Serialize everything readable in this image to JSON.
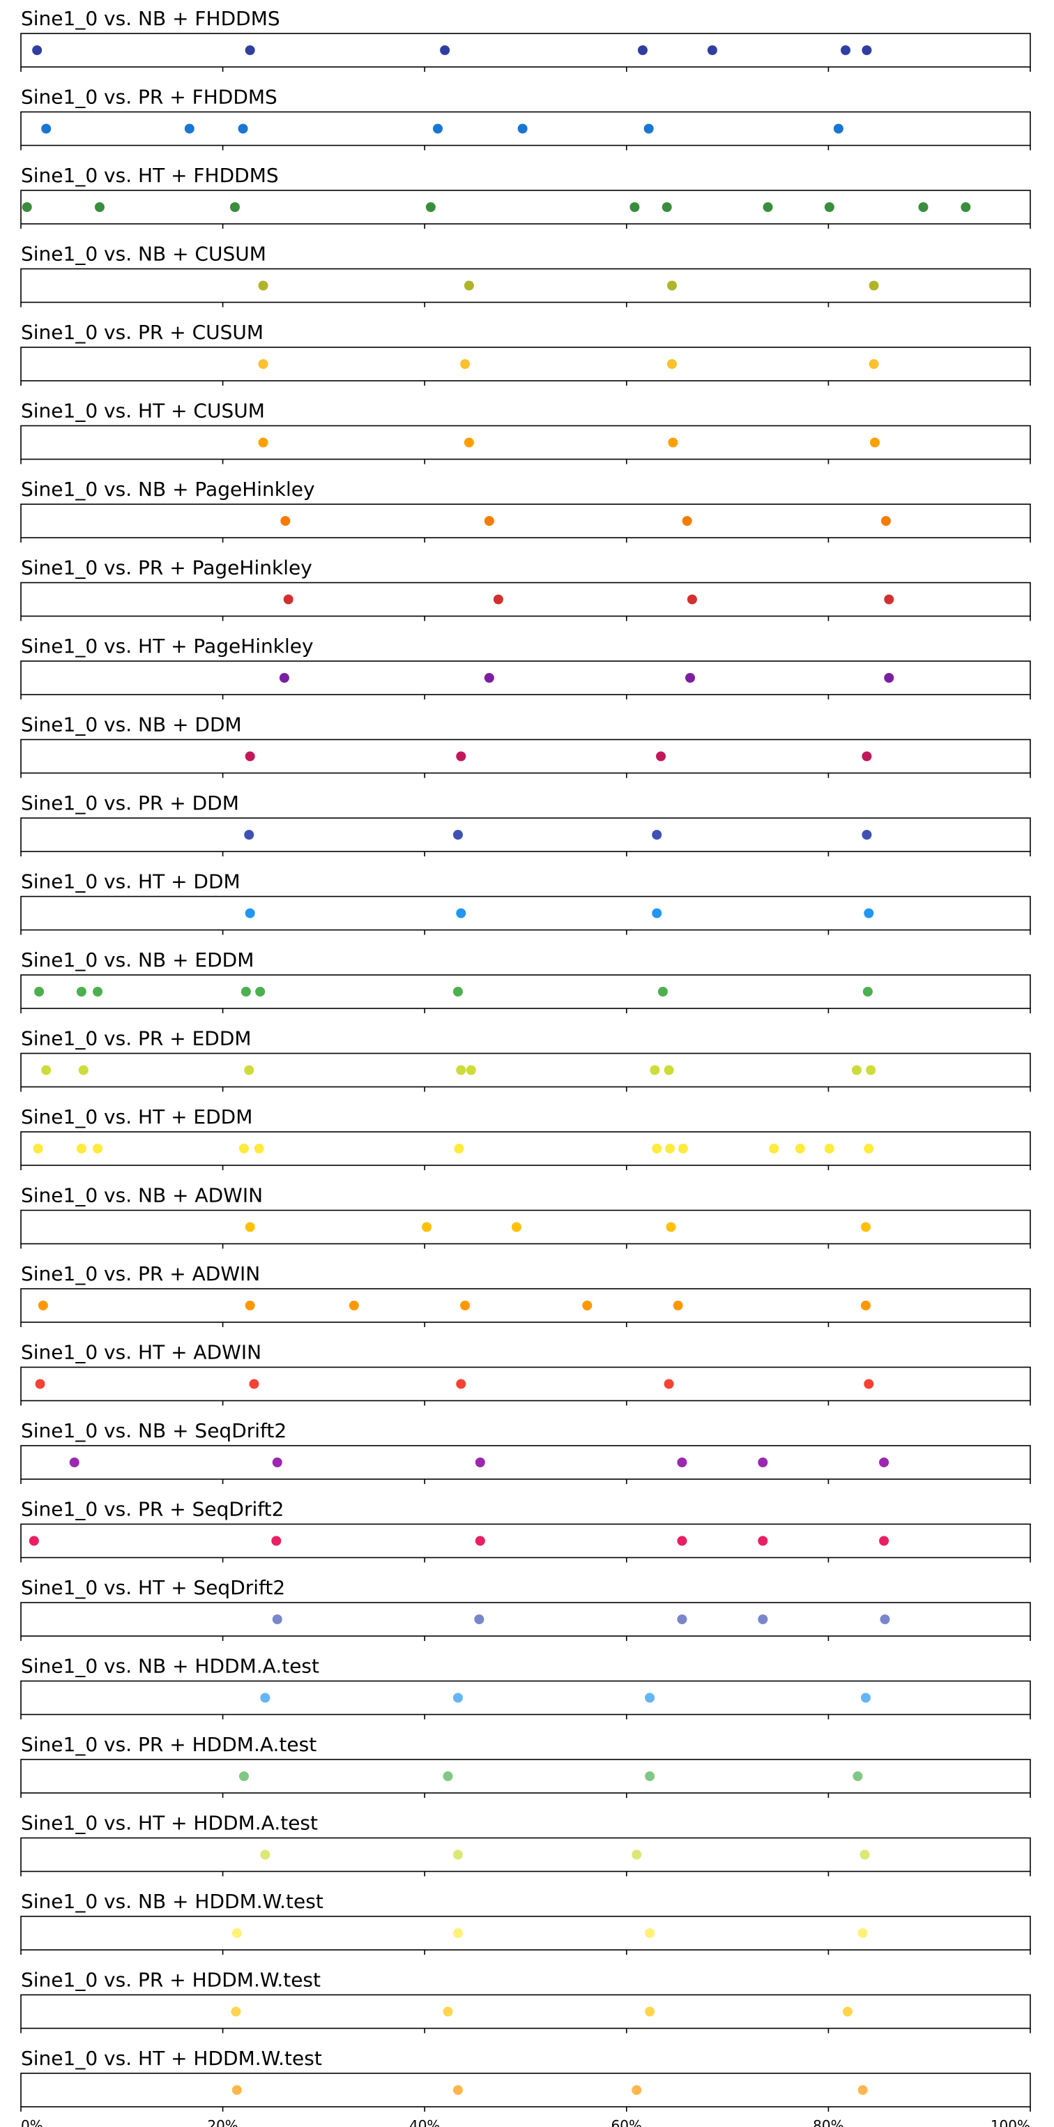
{
  "chart_data": {
    "type": "scatter",
    "xlim": [
      0,
      100
    ],
    "x_ticks": [
      "0%",
      "20%",
      "40%",
      "60%",
      "80%",
      "100%"
    ],
    "panels": [
      {
        "title": "Sine1_0 vs. NB + FHDDMS",
        "color": "#303f9f",
        "x": [
          1.6,
          22.7,
          42.0,
          61.6,
          68.5,
          81.7,
          83.8
        ]
      },
      {
        "title": "Sine1_0 vs. PR + FHDDMS",
        "color": "#1976d2",
        "x": [
          2.5,
          16.7,
          22.0,
          41.3,
          49.7,
          62.2,
          81.0
        ]
      },
      {
        "title": "Sine1_0 vs. HT + FHDDMS",
        "color": "#388e3c",
        "x": [
          0.6,
          7.8,
          21.2,
          40.6,
          60.8,
          64.0,
          74.0,
          80.1,
          89.4,
          93.6
        ]
      },
      {
        "title": "Sine1_0 vs. NB + CUSUM",
        "color": "#afb42b",
        "x": [
          24.0,
          44.4,
          64.5,
          84.5
        ]
      },
      {
        "title": "Sine1_0 vs. PR + CUSUM",
        "color": "#fbc02d",
        "x": [
          24.0,
          44.0,
          64.5,
          84.5
        ]
      },
      {
        "title": "Sine1_0 vs. HT + CUSUM",
        "color": "#ffa000",
        "x": [
          24.0,
          44.4,
          64.6,
          84.6
        ]
      },
      {
        "title": "Sine1_0 vs. NB + PageHinkley",
        "color": "#f57c00",
        "x": [
          26.2,
          46.4,
          66.0,
          85.7
        ]
      },
      {
        "title": "Sine1_0 vs. PR + PageHinkley",
        "color": "#d32f2f",
        "x": [
          26.5,
          47.3,
          66.5,
          86.0
        ]
      },
      {
        "title": "Sine1_0 vs. HT + PageHinkley",
        "color": "#7b1fa2",
        "x": [
          26.1,
          46.4,
          66.3,
          86.0
        ]
      },
      {
        "title": "Sine1_0 vs. NB + DDM",
        "color": "#c2185b",
        "x": [
          22.7,
          43.6,
          63.4,
          83.8
        ]
      },
      {
        "title": "Sine1_0 vs. PR + DDM",
        "color": "#3f51b5",
        "x": [
          22.6,
          43.3,
          63.0,
          83.8
        ]
      },
      {
        "title": "Sine1_0 vs. HT + DDM",
        "color": "#2196f3",
        "x": [
          22.7,
          43.6,
          63.0,
          84.0
        ]
      },
      {
        "title": "Sine1_0 vs. NB + EDDM",
        "color": "#4caf50",
        "x": [
          1.8,
          6.0,
          7.6,
          22.3,
          23.7,
          43.3,
          63.6,
          83.9
        ]
      },
      {
        "title": "Sine1_0 vs. PR + EDDM",
        "color": "#cddc39",
        "x": [
          2.5,
          6.2,
          22.6,
          43.6,
          44.6,
          62.8,
          64.2,
          82.8,
          84.2
        ]
      },
      {
        "title": "Sine1_0 vs. HT + EDDM",
        "color": "#ffeb3b",
        "x": [
          1.7,
          6.0,
          7.6,
          22.1,
          23.6,
          43.4,
          63.0,
          64.3,
          65.6,
          74.6,
          77.2,
          80.1,
          84.0
        ]
      },
      {
        "title": "Sine1_0 vs. NB + ADWIN",
        "color": "#ffc107",
        "x": [
          22.7,
          40.2,
          49.1,
          64.4,
          83.7
        ]
      },
      {
        "title": "Sine1_0 vs. PR + ADWIN",
        "color": "#ff9800",
        "x": [
          2.2,
          22.7,
          33.0,
          44.0,
          56.1,
          65.1,
          83.7
        ]
      },
      {
        "title": "Sine1_0 vs. HT + ADWIN",
        "color": "#f44336",
        "x": [
          1.9,
          23.1,
          43.6,
          64.2,
          84.0
        ]
      },
      {
        "title": "Sine1_0 vs. NB + SeqDrift2",
        "color": "#9c27b0",
        "x": [
          5.3,
          25.4,
          45.5,
          65.5,
          73.5,
          85.5
        ]
      },
      {
        "title": "Sine1_0 vs. PR + SeqDrift2",
        "color": "#e91e63",
        "x": [
          1.3,
          25.3,
          45.5,
          65.5,
          73.5,
          85.5
        ]
      },
      {
        "title": "Sine1_0 vs. HT + SeqDrift2",
        "color": "#7986cb",
        "x": [
          25.4,
          45.4,
          65.5,
          73.5,
          85.6
        ]
      },
      {
        "title": "Sine1_0 vs. NB + HDDM.A.test",
        "color": "#64b5f6",
        "x": [
          24.2,
          43.3,
          62.3,
          83.7
        ]
      },
      {
        "title": "Sine1_0 vs. PR + HDDM.A.test",
        "color": "#81c784",
        "x": [
          22.1,
          42.3,
          62.3,
          82.9
        ]
      },
      {
        "title": "Sine1_0 vs. HT + HDDM.A.test",
        "color": "#dce775",
        "x": [
          24.2,
          43.3,
          61.0,
          83.6
        ]
      },
      {
        "title": "Sine1_0 vs. NB + HDDM.W.test",
        "color": "#fff176",
        "x": [
          21.4,
          43.3,
          62.3,
          83.4
        ]
      },
      {
        "title": "Sine1_0 vs. PR + HDDM.W.test",
        "color": "#ffd54f",
        "x": [
          21.3,
          42.3,
          62.3,
          81.9
        ]
      },
      {
        "title": "Sine1_0 vs. HT + HDDM.W.test",
        "color": "#ffb74d",
        "x": [
          21.4,
          43.3,
          61.0,
          83.4
        ]
      }
    ]
  }
}
